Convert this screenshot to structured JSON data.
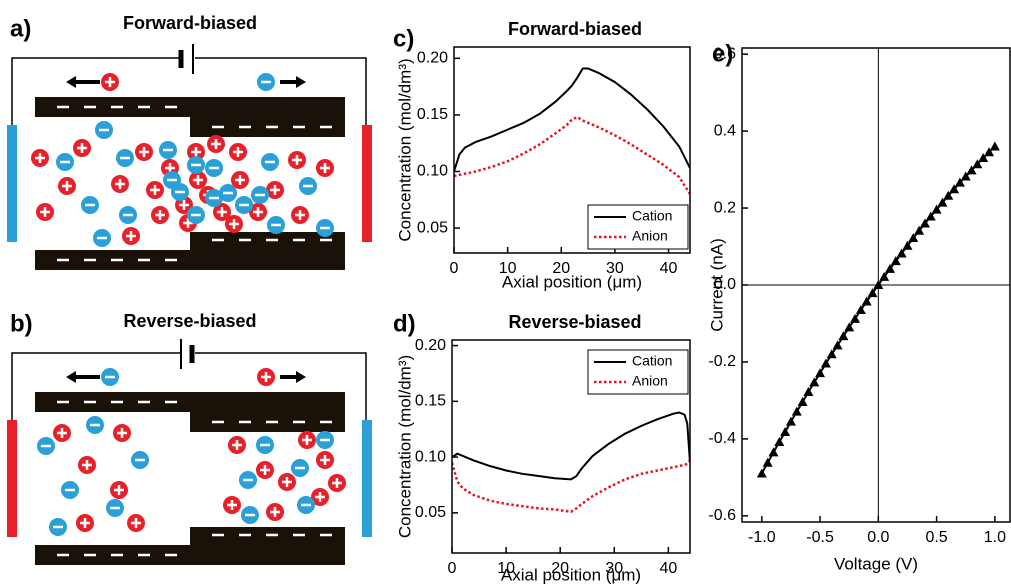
{
  "diagrams": [
    {
      "label": "a)",
      "title": "Forward-biased"
    },
    {
      "label": "b)",
      "title": "Reverse-biased"
    }
  ],
  "chart_data": [
    {
      "type": "line",
      "label": "c)",
      "title": "Forward-biased",
      "x_label": "Axial position (μm)",
      "y_label": "Concentration (mol/dm³)",
      "x": [
        0,
        1,
        2,
        4,
        7,
        10,
        13,
        16,
        19,
        21,
        22,
        23,
        24,
        25,
        27,
        30,
        33,
        36,
        39,
        42,
        44
      ],
      "series": [
        {
          "name": "Cation",
          "color": "#000000",
          "dash": "solid",
          "values": [
            0.1,
            0.115,
            0.121,
            0.126,
            0.131,
            0.137,
            0.143,
            0.151,
            0.162,
            0.171,
            0.176,
            0.183,
            0.191,
            0.191,
            0.187,
            0.179,
            0.168,
            0.155,
            0.14,
            0.122,
            0.103
          ]
        },
        {
          "name": "Anion",
          "color": "#e8141c",
          "dash": "dotted",
          "values": [
            0.096,
            0.097,
            0.098,
            0.1,
            0.104,
            0.109,
            0.116,
            0.124,
            0.134,
            0.141,
            0.146,
            0.148,
            0.145,
            0.143,
            0.139,
            0.132,
            0.124,
            0.115,
            0.106,
            0.095,
            0.08
          ]
        }
      ],
      "xlim": [
        0,
        44
      ],
      "xticks": [
        0,
        10,
        20,
        30,
        40
      ],
      "ylim": [
        0.028,
        0.21
      ],
      "yticks": [
        0.05,
        {
          "value": 0.1,
          "label": "0.10"
        },
        0.15,
        {
          "value": 0.2,
          "label": "0.20"
        }
      ],
      "legend": "lower right"
    },
    {
      "type": "line",
      "label": "d)",
      "title": "Reverse-biased",
      "x_label": "Axial position (μm)",
      "y_label": "Concentration (mol/dm³)",
      "x": [
        0,
        1,
        2,
        4,
        7,
        10,
        13,
        16,
        19,
        22,
        23,
        24,
        26,
        29,
        32,
        35,
        38,
        41,
        42,
        43,
        43.5,
        44
      ],
      "series": [
        {
          "name": "Cation",
          "color": "#000000",
          "dash": "solid",
          "values": [
            0.1,
            0.103,
            0.101,
            0.097,
            0.092,
            0.088,
            0.085,
            0.083,
            0.081,
            0.08,
            0.083,
            0.09,
            0.101,
            0.112,
            0.121,
            0.128,
            0.134,
            0.139,
            0.14,
            0.138,
            0.13,
            0.095
          ]
        },
        {
          "name": "Anion",
          "color": "#e8141c",
          "dash": "dotted",
          "values": [
            0.095,
            0.078,
            0.072,
            0.066,
            0.061,
            0.058,
            0.056,
            0.054,
            0.053,
            0.051,
            0.054,
            0.058,
            0.065,
            0.073,
            0.08,
            0.085,
            0.088,
            0.091,
            0.092,
            0.093,
            0.094,
            0.097
          ]
        }
      ],
      "xlim": [
        0,
        44
      ],
      "xticks": [
        0,
        10,
        20,
        30,
        40
      ],
      "ylim": [
        0.014,
        0.205
      ],
      "yticks": [
        0.05,
        {
          "value": 0.1,
          "label": "0.10"
        },
        0.15,
        {
          "value": 0.2,
          "label": "0.20"
        }
      ],
      "legend": "upper right"
    },
    {
      "type": "line",
      "label": "e)",
      "x_label": "Voltage (V)",
      "y_label": "Current (nA)",
      "marker": "triangle",
      "color": "#000000",
      "zero_lines": true,
      "x": [
        -1.0,
        -0.95,
        -0.9,
        -0.85,
        -0.8,
        -0.75,
        -0.7,
        -0.65,
        -0.6,
        -0.55,
        -0.5,
        -0.45,
        -0.4,
        -0.35,
        -0.3,
        -0.25,
        -0.2,
        -0.15,
        -0.1,
        -0.05,
        0,
        0.05,
        0.1,
        0.15,
        0.2,
        0.25,
        0.3,
        0.35,
        0.4,
        0.45,
        0.5,
        0.55,
        0.6,
        0.65,
        0.7,
        0.75,
        0.8,
        0.85,
        0.9,
        0.95,
        1.0
      ],
      "values": [
        -0.49,
        -0.462,
        -0.435,
        -0.408,
        -0.382,
        -0.355,
        -0.329,
        -0.304,
        -0.278,
        -0.253,
        -0.229,
        -0.204,
        -0.18,
        -0.157,
        -0.133,
        -0.11,
        -0.088,
        -0.065,
        -0.043,
        -0.021,
        0,
        0.021,
        0.042,
        0.062,
        0.082,
        0.102,
        0.122,
        0.141,
        0.16,
        0.178,
        0.196,
        0.214,
        0.232,
        0.249,
        0.266,
        0.282,
        0.298,
        0.314,
        0.33,
        0.345,
        0.36
      ],
      "xlim": [
        -1.17,
        1.13
      ],
      "xticks": [
        {
          "value": -1,
          "label": "-1.0"
        },
        -0.5,
        {
          "value": 0,
          "label": "0.0"
        },
        0.5,
        {
          "value": 1,
          "label": "1.0"
        }
      ],
      "ylim": [
        -0.616,
        0.616
      ],
      "yticks": [
        -0.6,
        -0.4,
        -0.2,
        {
          "value": 0,
          "label": "0.0"
        },
        0.2,
        0.4,
        0.6
      ]
    }
  ]
}
